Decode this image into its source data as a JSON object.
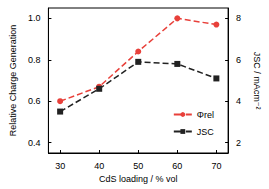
{
  "chart_data": {
    "type": "line",
    "x_label": "CdS loading / % vol",
    "y_label": "Relative Charge Generation",
    "y2_label": "JSC / mAcm⁻²",
    "x": [
      30,
      40,
      50,
      60,
      70
    ],
    "series": [
      {
        "name": "Φrel",
        "color": "#e8403a",
        "marker": "circle",
        "line_style": "dashed",
        "values": [
          0.6,
          0.67,
          0.84,
          1.0,
          0.97
        ]
      },
      {
        "name": "JSC",
        "color": "#222222",
        "marker": "square",
        "line_style": "dashed",
        "axis": "y2",
        "values": [
          3.5,
          4.6,
          5.9,
          5.8,
          5.1
        ]
      }
    ],
    "xlim": [
      27,
      73
    ],
    "xticks": [
      30,
      40,
      50,
      60,
      70
    ],
    "ylim": [
      0.35,
      1.05
    ],
    "yticks": [
      {
        "value": 0.4,
        "label": "0.4"
      },
      {
        "value": 0.6,
        "label": "0.6"
      },
      {
        "value": 0.8,
        "label": "0.8"
      },
      {
        "value": 1.0,
        "label": "1.0"
      }
    ],
    "y2lim": [
      1.5,
      8.5
    ],
    "y2ticks": [
      2,
      4,
      6,
      8
    ],
    "legend": "lower right",
    "grid": false
  }
}
